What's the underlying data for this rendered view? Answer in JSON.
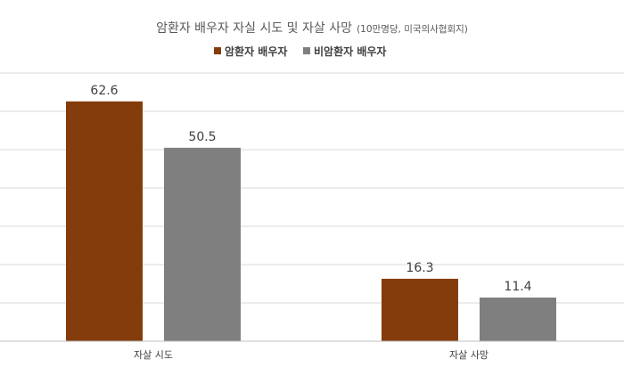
{
  "chart_data": {
    "type": "bar",
    "title": "암환자 배우자 자실 시도 및 자살 사망",
    "title_note": "(10만명당, 미국의사협회지)",
    "categories": [
      "자살 시도",
      "자살 사망"
    ],
    "series": [
      {
        "name": "암환자 배우자",
        "values": [
          62.6,
          16.3
        ],
        "color": "#843c0c"
      },
      {
        "name": "비암환자 배우자",
        "values": [
          50.5,
          11.4
        ],
        "color": "#7f7f7f"
      }
    ],
    "data_labels": [
      [
        "62.6",
        "16.3"
      ],
      [
        "50.5",
        "11.4"
      ]
    ],
    "ylim": [
      0,
      70
    ],
    "y_grid_step": 10,
    "grid": true,
    "y_tick_labels_visible": false,
    "legend_position": "top-center"
  }
}
